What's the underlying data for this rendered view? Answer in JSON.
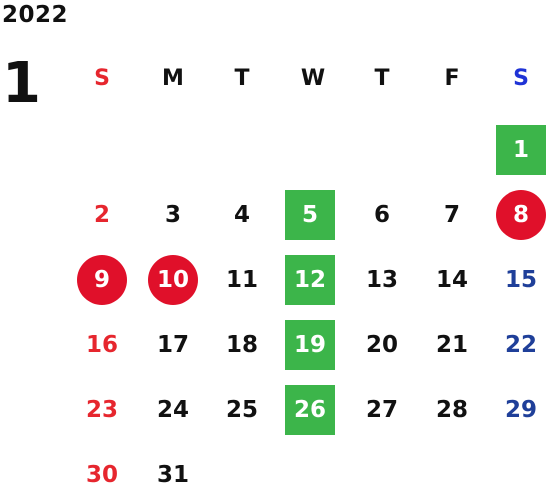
{
  "year": "2022",
  "month": "1",
  "weekdays": [
    "S",
    "M",
    "T",
    "W",
    "T",
    "F",
    "S"
  ],
  "colors": {
    "sunday": "#e6262e",
    "saturday": "#1f3f99",
    "green_mark": "#3cb54a",
    "red_mark": "#e0102a"
  },
  "days": [
    {
      "d": "1",
      "col": 6,
      "row": 0,
      "mark": "green"
    },
    {
      "d": "2",
      "col": 0,
      "row": 1
    },
    {
      "d": "3",
      "col": 1,
      "row": 1
    },
    {
      "d": "4",
      "col": 2,
      "row": 1
    },
    {
      "d": "5",
      "col": 3,
      "row": 1,
      "mark": "green"
    },
    {
      "d": "6",
      "col": 4,
      "row": 1
    },
    {
      "d": "7",
      "col": 5,
      "row": 1
    },
    {
      "d": "8",
      "col": 6,
      "row": 1,
      "mark": "red"
    },
    {
      "d": "9",
      "col": 0,
      "row": 2,
      "mark": "red"
    },
    {
      "d": "10",
      "col": 1,
      "row": 2,
      "mark": "red"
    },
    {
      "d": "11",
      "col": 2,
      "row": 2
    },
    {
      "d": "12",
      "col": 3,
      "row": 2,
      "mark": "green"
    },
    {
      "d": "13",
      "col": 4,
      "row": 2
    },
    {
      "d": "14",
      "col": 5,
      "row": 2
    },
    {
      "d": "15",
      "col": 6,
      "row": 2
    },
    {
      "d": "16",
      "col": 0,
      "row": 3
    },
    {
      "d": "17",
      "col": 1,
      "row": 3
    },
    {
      "d": "18",
      "col": 2,
      "row": 3
    },
    {
      "d": "19",
      "col": 3,
      "row": 3,
      "mark": "green"
    },
    {
      "d": "20",
      "col": 4,
      "row": 3
    },
    {
      "d": "21",
      "col": 5,
      "row": 3
    },
    {
      "d": "22",
      "col": 6,
      "row": 3
    },
    {
      "d": "23",
      "col": 0,
      "row": 4
    },
    {
      "d": "24",
      "col": 1,
      "row": 4
    },
    {
      "d": "25",
      "col": 2,
      "row": 4
    },
    {
      "d": "26",
      "col": 3,
      "row": 4,
      "mark": "green"
    },
    {
      "d": "27",
      "col": 4,
      "row": 4
    },
    {
      "d": "28",
      "col": 5,
      "row": 4
    },
    {
      "d": "29",
      "col": 6,
      "row": 4
    },
    {
      "d": "30",
      "col": 0,
      "row": 5
    },
    {
      "d": "31",
      "col": 1,
      "row": 5
    }
  ]
}
